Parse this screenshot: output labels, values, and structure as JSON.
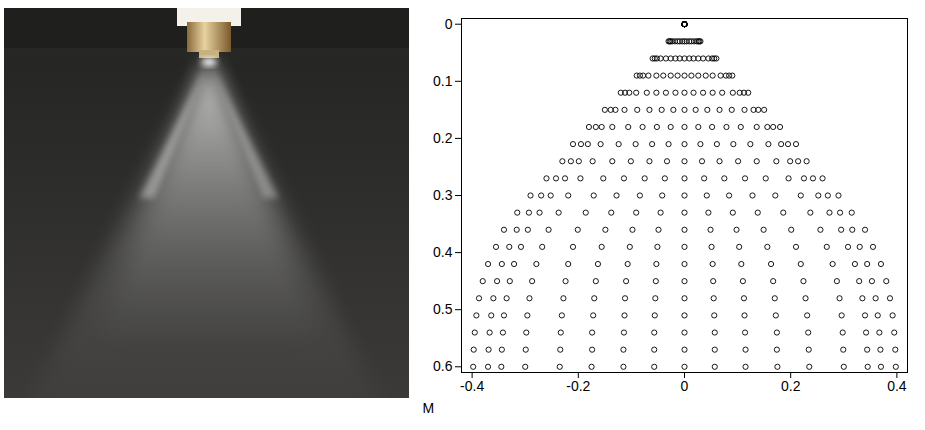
{
  "chart_data": {
    "type": "scatter",
    "xlabel": "M",
    "marker": "circle",
    "color": "#000000",
    "xlim": [
      -0.42,
      0.42
    ],
    "xticks": [
      -0.4,
      -0.2,
      0,
      0.2,
      0.4
    ],
    "ylim": [
      -0.01,
      0.61
    ],
    "yticks": [
      0,
      0.1,
      0.2,
      0.3,
      0.4,
      0.5,
      0.6
    ],
    "y": [
      0,
      0.03,
      0.06,
      0.09,
      0.12,
      0.15,
      0.18,
      0.21,
      0.24,
      0.27,
      0.3,
      0.33,
      0.36,
      0.39,
      0.42,
      0.45,
      0.48,
      0.51,
      0.54,
      0.57,
      0.6
    ],
    "series": [
      {
        "x": [
          0,
          -0.03,
          -0.06,
          -0.09,
          -0.12,
          -0.15,
          -0.18,
          -0.21,
          -0.23,
          -0.26,
          -0.29,
          -0.315,
          -0.34,
          -0.355,
          -0.37,
          -0.38,
          -0.387,
          -0.392,
          -0.395,
          -0.397,
          -0.398
        ]
      },
      {
        "x": [
          0,
          -0.028,
          -0.056,
          -0.084,
          -0.112,
          -0.139,
          -0.167,
          -0.195,
          -0.214,
          -0.242,
          -0.27,
          -0.293,
          -0.316,
          -0.33,
          -0.344,
          -0.353,
          -0.36,
          -0.364,
          -0.367,
          -0.369,
          -0.37
        ]
      },
      {
        "x": [
          0,
          -0.026,
          -0.052,
          -0.078,
          -0.104,
          -0.13,
          -0.156,
          -0.182,
          -0.199,
          -0.225,
          -0.252,
          -0.273,
          -0.295,
          -0.308,
          -0.321,
          -0.329,
          -0.335,
          -0.34,
          -0.342,
          -0.344,
          -0.345
        ]
      },
      {
        "x": [
          0,
          -0.023,
          -0.045,
          -0.068,
          -0.091,
          -0.113,
          -0.136,
          -0.158,
          -0.173,
          -0.196,
          -0.219,
          -0.237,
          -0.256,
          -0.268,
          -0.279,
          -0.287,
          -0.292,
          -0.296,
          -0.298,
          -0.299,
          -0.3
        ]
      },
      {
        "x": [
          0,
          -0.018,
          -0.035,
          -0.053,
          -0.071,
          -0.089,
          -0.106,
          -0.124,
          -0.136,
          -0.153,
          -0.171,
          -0.186,
          -0.201,
          -0.21,
          -0.219,
          -0.224,
          -0.228,
          -0.231,
          -0.233,
          -0.234,
          -0.235
        ]
      },
      {
        "x": [
          0,
          -0.013,
          -0.026,
          -0.04,
          -0.053,
          -0.066,
          -0.079,
          -0.092,
          -0.101,
          -0.114,
          -0.128,
          -0.138,
          -0.149,
          -0.156,
          -0.163,
          -0.167,
          -0.17,
          -0.172,
          -0.174,
          -0.174,
          -0.175
        ]
      },
      {
        "x": [
          0,
          -0.009,
          -0.017,
          -0.026,
          -0.035,
          -0.043,
          -0.052,
          -0.061,
          -0.066,
          -0.075,
          -0.084,
          -0.091,
          -0.098,
          -0.103,
          -0.107,
          -0.11,
          -0.112,
          -0.113,
          -0.114,
          -0.115,
          -0.115
        ]
      },
      {
        "x": [
          0,
          -0.004,
          -0.009,
          -0.013,
          -0.017,
          -0.021,
          -0.026,
          -0.03,
          -0.033,
          -0.037,
          -0.042,
          -0.045,
          -0.049,
          -0.051,
          -0.053,
          -0.054,
          -0.055,
          -0.056,
          -0.057,
          -0.057,
          -0.057
        ]
      },
      {
        "x": [
          0,
          0,
          0,
          0,
          0,
          0,
          0,
          0,
          0,
          0,
          0,
          0,
          0,
          0,
          0,
          0,
          0,
          0,
          0,
          0,
          0
        ]
      },
      {
        "x": [
          0,
          0.004,
          0.009,
          0.013,
          0.017,
          0.021,
          0.026,
          0.03,
          0.033,
          0.037,
          0.042,
          0.045,
          0.049,
          0.051,
          0.053,
          0.054,
          0.055,
          0.056,
          0.057,
          0.057,
          0.057
        ]
      },
      {
        "x": [
          0,
          0.009,
          0.017,
          0.026,
          0.035,
          0.043,
          0.052,
          0.061,
          0.066,
          0.075,
          0.084,
          0.091,
          0.098,
          0.103,
          0.107,
          0.11,
          0.112,
          0.113,
          0.114,
          0.115,
          0.115
        ]
      },
      {
        "x": [
          0,
          0.013,
          0.026,
          0.04,
          0.053,
          0.066,
          0.079,
          0.092,
          0.101,
          0.114,
          0.128,
          0.138,
          0.149,
          0.156,
          0.163,
          0.167,
          0.17,
          0.172,
          0.174,
          0.174,
          0.175
        ]
      },
      {
        "x": [
          0,
          0.018,
          0.035,
          0.053,
          0.071,
          0.089,
          0.106,
          0.124,
          0.136,
          0.153,
          0.171,
          0.186,
          0.201,
          0.21,
          0.219,
          0.224,
          0.228,
          0.231,
          0.233,
          0.234,
          0.235
        ]
      },
      {
        "x": [
          0,
          0.023,
          0.045,
          0.068,
          0.091,
          0.113,
          0.136,
          0.158,
          0.173,
          0.196,
          0.219,
          0.237,
          0.256,
          0.268,
          0.279,
          0.287,
          0.292,
          0.296,
          0.298,
          0.299,
          0.3
        ]
      },
      {
        "x": [
          0,
          0.026,
          0.052,
          0.078,
          0.104,
          0.13,
          0.156,
          0.182,
          0.199,
          0.225,
          0.252,
          0.273,
          0.295,
          0.308,
          0.321,
          0.329,
          0.335,
          0.34,
          0.342,
          0.344,
          0.345
        ]
      },
      {
        "x": [
          0,
          0.028,
          0.056,
          0.084,
          0.112,
          0.139,
          0.167,
          0.195,
          0.214,
          0.242,
          0.27,
          0.293,
          0.316,
          0.33,
          0.344,
          0.353,
          0.36,
          0.364,
          0.367,
          0.369,
          0.37
        ]
      },
      {
        "x": [
          0,
          0.03,
          0.06,
          0.09,
          0.12,
          0.15,
          0.18,
          0.21,
          0.23,
          0.26,
          0.29,
          0.315,
          0.34,
          0.355,
          0.37,
          0.38,
          0.387,
          0.392,
          0.395,
          0.397,
          0.398
        ]
      }
    ]
  }
}
